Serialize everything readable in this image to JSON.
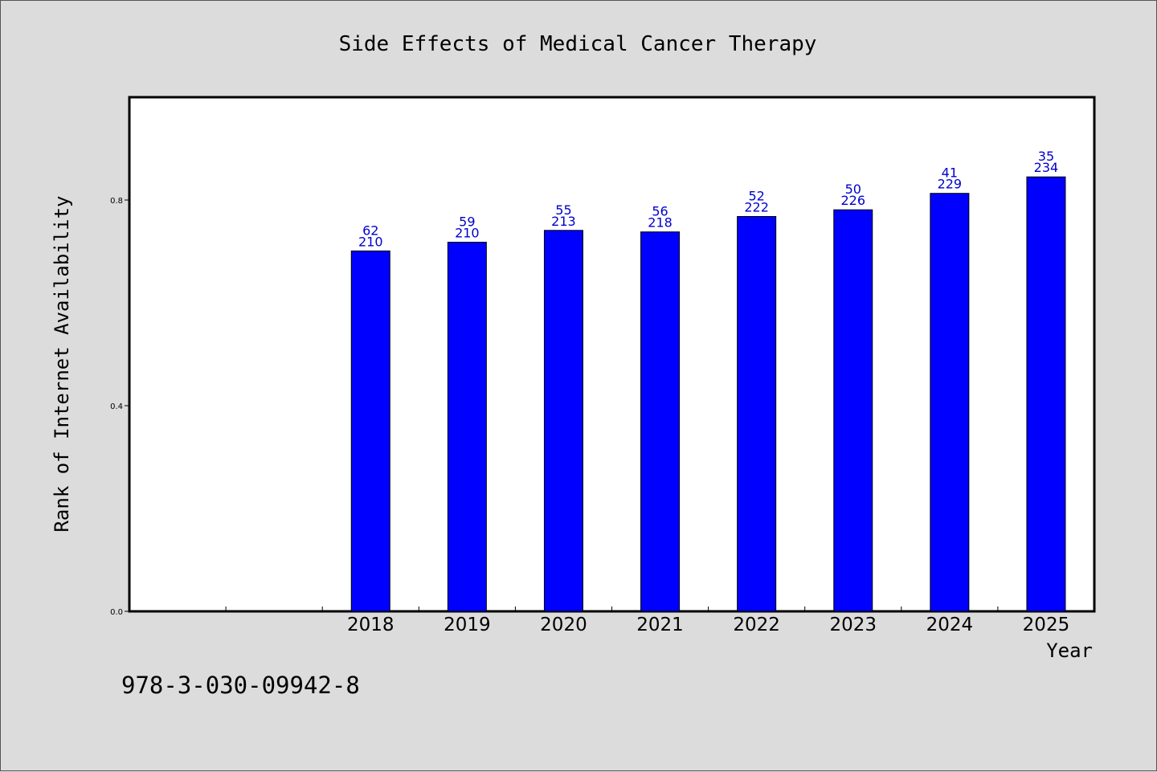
{
  "footer": {
    "isbn": "978-3-030-09942-8"
  },
  "chart_data": {
    "type": "bar",
    "title": "Side Effects of Medical Cancer Therapy",
    "xlabel": "Year",
    "ylabel": "Rank of Internet Availability",
    "ylim": [
      0,
      1.0
    ],
    "yticks": [
      "0.0",
      "0.4",
      "0.8"
    ],
    "ytick_values": [
      0.0,
      0.4,
      0.8
    ],
    "slots": 10,
    "categories": [
      "2018",
      "2019",
      "2020",
      "2021",
      "2022",
      "2023",
      "2024",
      "2025"
    ],
    "first_category_slot": 2,
    "values": [
      0.701,
      0.718,
      0.741,
      0.738,
      0.768,
      0.781,
      0.813,
      0.845
    ],
    "label_top": [
      "62",
      "59",
      "55",
      "56",
      "52",
      "50",
      "41",
      "35"
    ],
    "label_bottom": [
      "210",
      "210",
      "213",
      "218",
      "222",
      "226",
      "229",
      "234"
    ],
    "bar_color": "#0000ff",
    "label_color": "#0000cc",
    "grid": false,
    "legend": "none"
  }
}
